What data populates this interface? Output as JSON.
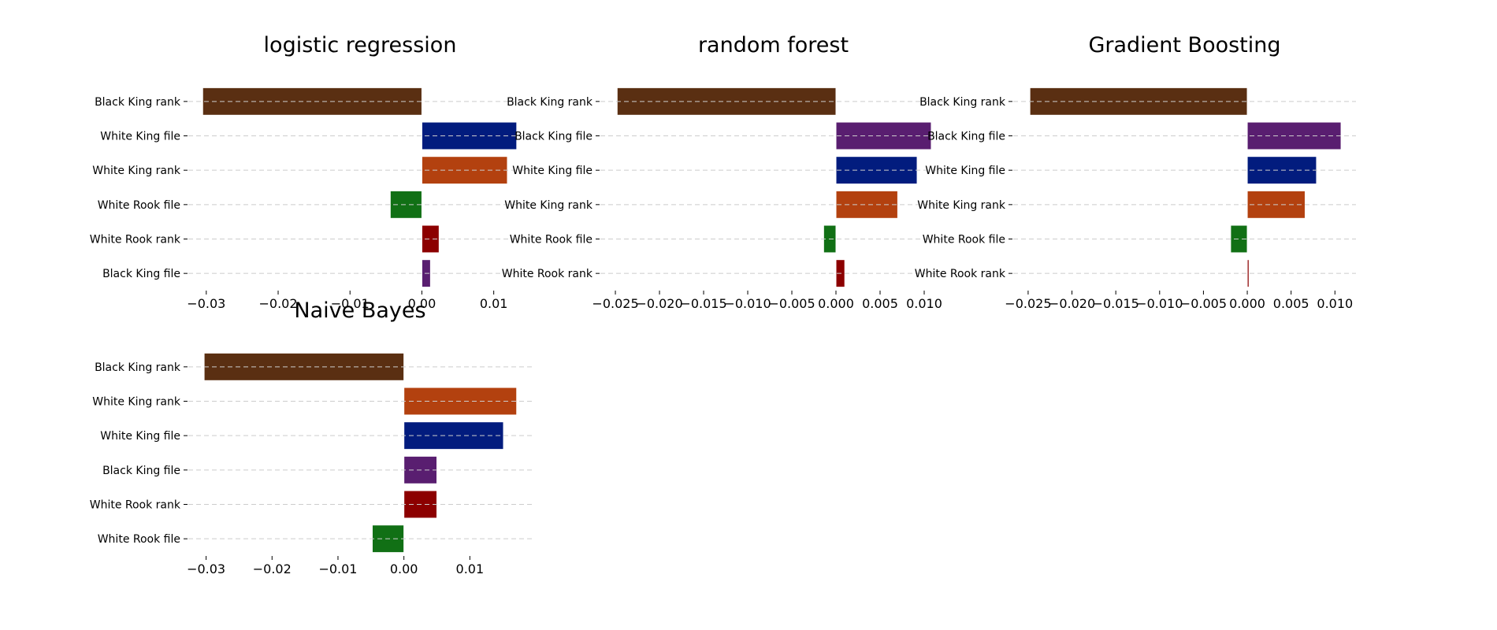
{
  "colors": {
    "Black King rank": "#5a2f12",
    "White King file": "#021c7e",
    "White King rank": "#b3410f",
    "White Rook file": "#117015",
    "White Rook rank": "#8c0000",
    "Black King file": "#591e70"
  },
  "chart_data": [
    {
      "type": "bar",
      "orientation": "horizontal",
      "title": "logistic regression",
      "categories": [
        "Black King rank",
        "White King file",
        "White King rank",
        "White Rook file",
        "White Rook rank",
        "Black King file"
      ],
      "values": [
        -0.0305,
        0.0132,
        0.0119,
        -0.0044,
        0.0024,
        0.0012
      ],
      "xlim": [
        -0.0325,
        0.0153
      ],
      "xticks": [
        -0.03,
        -0.02,
        -0.01,
        0.0,
        0.01
      ],
      "xtick_labels": [
        "−0.03",
        "−0.02",
        "−0.01",
        "0.00",
        "0.01"
      ],
      "grid": "horizontal dashed"
    },
    {
      "type": "bar",
      "orientation": "horizontal",
      "title": "random forest",
      "categories": [
        "Black King rank",
        "Black King file",
        "White King file",
        "White King rank",
        "White Rook file",
        "White Rook rank"
      ],
      "values": [
        -0.0248,
        0.0108,
        0.0092,
        0.007,
        -0.0014,
        0.001
      ],
      "xlim": [
        -0.0267,
        0.0125
      ],
      "xticks": [
        -0.025,
        -0.02,
        -0.015,
        -0.01,
        -0.005,
        0.0,
        0.005,
        0.01
      ],
      "xtick_labels": [
        "−0.025",
        "−0.020",
        "−0.015",
        "−0.010",
        "−0.005",
        "0.000",
        "0.005",
        "0.010"
      ],
      "grid": "horizontal dashed"
    },
    {
      "type": "bar",
      "orientation": "horizontal",
      "title": "Gradient Boosting",
      "categories": [
        "Black King rank",
        "Black King file",
        "White King file",
        "White King rank",
        "White Rook file",
        "White Rook rank"
      ],
      "values": [
        -0.0248,
        0.0107,
        0.0079,
        0.0066,
        -0.0019,
        0.0002
      ],
      "xlim": [
        -0.0267,
        0.0124
      ],
      "xticks": [
        -0.025,
        -0.02,
        -0.015,
        -0.01,
        -0.005,
        0.0,
        0.005,
        0.01
      ],
      "xtick_labels": [
        "−0.025",
        "−0.020",
        "−0.015",
        "−0.010",
        "−0.005",
        "0.000",
        "0.005",
        "0.010"
      ],
      "grid": "horizontal dashed"
    },
    {
      "type": "bar",
      "orientation": "horizontal",
      "title": "Naive Bayes",
      "categories": [
        "Black King rank",
        "White King rank",
        "White King file",
        "Black King file",
        "White Rook rank",
        "White Rook file"
      ],
      "values": [
        -0.0303,
        0.0171,
        0.0151,
        0.005,
        0.005,
        -0.0048
      ],
      "xlim": [
        -0.0327,
        0.0194
      ],
      "xticks": [
        -0.03,
        -0.02,
        -0.01,
        0.0,
        0.01
      ],
      "xtick_labels": [
        "−0.03",
        "−0.02",
        "−0.01",
        "0.00",
        "0.01"
      ],
      "grid": "horizontal dashed"
    }
  ]
}
